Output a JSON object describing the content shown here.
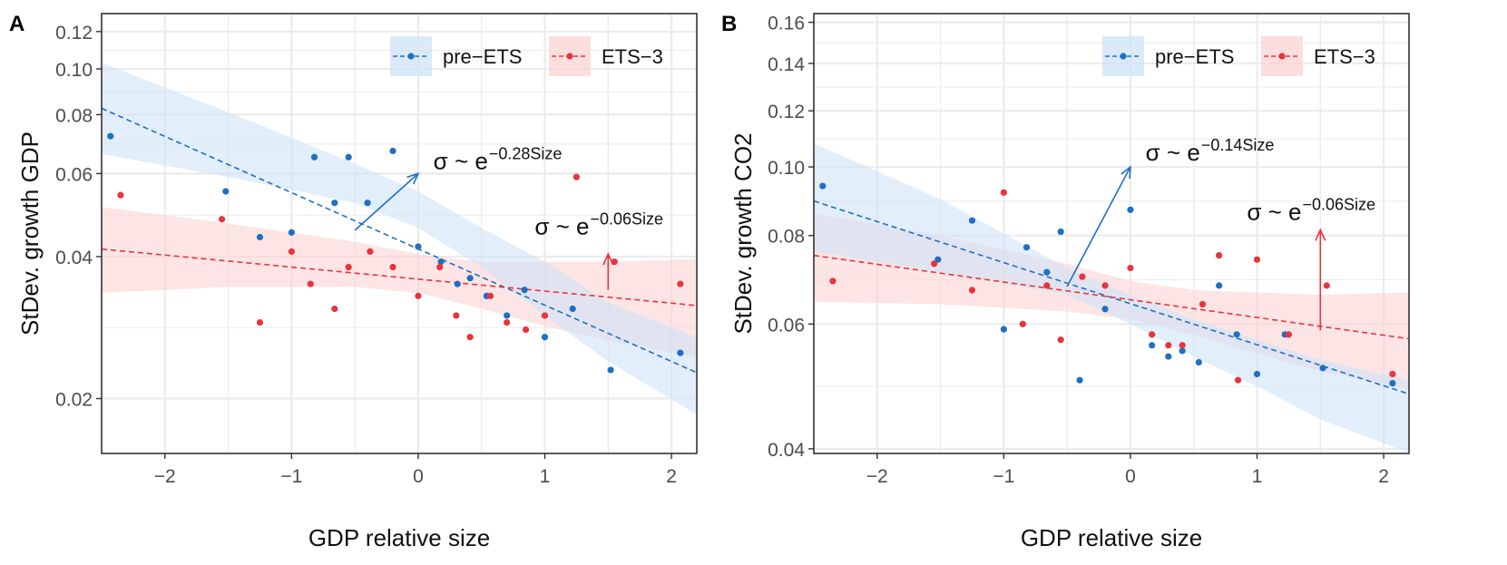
{
  "colors": {
    "blue": "#1f6fc4",
    "red": "#e8343c",
    "blue_band": "#cfe3f6",
    "red_band": "#fbd3d3",
    "grid": "#ebebeb",
    "axis_text": "#4d4d4d"
  },
  "chart_data": [
    {
      "panel": "A",
      "type": "scatter",
      "xlabel": "GDP relative size",
      "ylabel": "StDev. growth GDP",
      "yscale": "log",
      "xlim": [
        -2.5,
        2.2
      ],
      "ylim": [
        0.0153,
        0.131
      ],
      "xticks": [
        -2,
        -1,
        0,
        1,
        2
      ],
      "xtick_labels": [
        "−2",
        "−1",
        "0",
        "1",
        "2"
      ],
      "yticks": [
        0.02,
        0.04,
        0.06,
        0.08,
        0.1,
        0.12
      ],
      "ytick_labels": [
        "0.02",
        "0.04",
        "0.06",
        "0.08",
        "0.10",
        "0.12"
      ],
      "legend": [
        {
          "label": "pre−ETS",
          "series": "blue"
        },
        {
          "label": "ETS−3",
          "series": "red"
        }
      ],
      "series": [
        {
          "name": "pre−ETS",
          "color_key": "blue",
          "points": [
            [
              -2.43,
              0.072
            ],
            [
              -1.52,
              0.055
            ],
            [
              -1.25,
              0.044
            ],
            [
              -1.0,
              0.045
            ],
            [
              -0.82,
              0.065
            ],
            [
              -0.55,
              0.065
            ],
            [
              -0.66,
              0.052
            ],
            [
              -0.4,
              0.052
            ],
            [
              -0.2,
              0.067
            ],
            [
              0.0,
              0.042
            ],
            [
              0.18,
              0.039
            ],
            [
              0.31,
              0.035
            ],
            [
              0.41,
              0.036
            ],
            [
              0.54,
              0.033
            ],
            [
              0.7,
              0.03
            ],
            [
              0.84,
              0.034
            ],
            [
              1.0,
              0.027
            ],
            [
              1.22,
              0.031
            ],
            [
              1.52,
              0.023
            ],
            [
              2.07,
              0.025
            ]
          ],
          "fit": {
            "x": [
              -2.5,
              2.2
            ],
            "y": [
              0.0825,
              0.0227
            ]
          },
          "band_upper": [
            [
              -2.5,
              0.103
            ],
            [
              -1.5,
              0.081
            ],
            [
              -0.5,
              0.063
            ],
            [
              0.0,
              0.055
            ],
            [
              0.5,
              0.046
            ],
            [
              1.0,
              0.039
            ],
            [
              1.5,
              0.032
            ],
            [
              2.2,
              0.027
            ]
          ],
          "band_lower": [
            [
              -2.5,
              0.066
            ],
            [
              -1.5,
              0.059
            ],
            [
              -0.5,
              0.052
            ],
            [
              0.0,
              0.046
            ],
            [
              0.5,
              0.038
            ],
            [
              1.0,
              0.03
            ],
            [
              1.5,
              0.024
            ],
            [
              2.2,
              0.0185
            ]
          ]
        },
        {
          "name": "ETS−3",
          "color_key": "red",
          "points": [
            [
              -2.35,
              0.054
            ],
            [
              -1.55,
              0.048
            ],
            [
              -1.25,
              0.029
            ],
            [
              -1.0,
              0.041
            ],
            [
              -0.85,
              0.035
            ],
            [
              -0.66,
              0.031
            ],
            [
              -0.55,
              0.038
            ],
            [
              -0.38,
              0.041
            ],
            [
              -0.2,
              0.038
            ],
            [
              0.0,
              0.033
            ],
            [
              0.17,
              0.038
            ],
            [
              0.3,
              0.03
            ],
            [
              0.41,
              0.027
            ],
            [
              0.57,
              0.033
            ],
            [
              0.7,
              0.029
            ],
            [
              0.85,
              0.028
            ],
            [
              1.0,
              0.03
            ],
            [
              1.25,
              0.059
            ],
            [
              1.55,
              0.039
            ],
            [
              2.07,
              0.035
            ]
          ],
          "fit": {
            "x": [
              -2.5,
              2.2
            ],
            "y": [
              0.0415,
              0.0315
            ]
          },
          "band_upper": [
            [
              -2.5,
              0.051
            ],
            [
              -1.5,
              0.047
            ],
            [
              -0.5,
              0.043
            ],
            [
              0.0,
              0.0405
            ],
            [
              0.5,
              0.039
            ],
            [
              1.0,
              0.039
            ],
            [
              1.5,
              0.039
            ],
            [
              2.2,
              0.0395
            ]
          ],
          "band_lower": [
            [
              -2.5,
              0.0335
            ],
            [
              -1.5,
              0.0345
            ],
            [
              -0.5,
              0.0345
            ],
            [
              0.0,
              0.0335
            ],
            [
              0.5,
              0.031
            ],
            [
              1.0,
              0.0285
            ],
            [
              1.5,
              0.0265
            ],
            [
              2.2,
              0.0245
            ]
          ]
        }
      ],
      "annotations": [
        {
          "base": "σ ~ e",
          "exponent": "−0.28Size",
          "color_key": "blue",
          "arrow": {
            "from": [
              -0.5,
              0.0455
            ],
            "to": [
              0.0,
              0.06
            ]
          },
          "text_at": [
            0.12,
            0.0635
          ]
        },
        {
          "base": "σ ~ e",
          "exponent": "−0.06Size",
          "color_key": "red",
          "arrow": {
            "from": [
              1.5,
              0.034
            ],
            "to": [
              1.5,
              0.0405
            ]
          },
          "text_at": [
            0.92,
            0.0462
          ]
        }
      ]
    },
    {
      "panel": "B",
      "type": "scatter",
      "xlabel": "GDP relative size",
      "ylabel": "StDev. growth CO2",
      "yscale": "log",
      "xlim": [
        -2.5,
        2.2
      ],
      "ylim": [
        0.0394,
        0.1646
      ],
      "xticks": [
        -2,
        -1,
        0,
        1,
        2
      ],
      "xtick_labels": [
        "−2",
        "−1",
        "0",
        "1",
        "2"
      ],
      "yticks": [
        0.04,
        0.06,
        0.08,
        0.1,
        0.12,
        0.14,
        0.16
      ],
      "ytick_labels": [
        "0.04",
        "0.06",
        "0.08",
        "0.10",
        "0.12",
        "0.14",
        "0.16"
      ],
      "legend": [
        {
          "label": "pre−ETS",
          "series": "blue"
        },
        {
          "label": "ETS−3",
          "series": "red"
        }
      ],
      "series": [
        {
          "name": "pre−ETS",
          "color_key": "blue",
          "points": [
            [
              -2.43,
              0.094
            ],
            [
              -1.52,
              0.074
            ],
            [
              -1.25,
              0.084
            ],
            [
              -1.0,
              0.059
            ],
            [
              -0.82,
              0.077
            ],
            [
              -0.66,
              0.071
            ],
            [
              -0.55,
              0.081
            ],
            [
              -0.4,
              0.05
            ],
            [
              -0.2,
              0.063
            ],
            [
              0.0,
              0.087
            ],
            [
              0.17,
              0.056
            ],
            [
              0.3,
              0.054
            ],
            [
              0.41,
              0.055
            ],
            [
              0.54,
              0.053
            ],
            [
              0.7,
              0.068
            ],
            [
              0.84,
              0.058
            ],
            [
              1.0,
              0.051
            ],
            [
              1.22,
              0.058
            ],
            [
              1.52,
              0.052
            ],
            [
              2.07,
              0.0495
            ]
          ],
          "fit": {
            "x": [
              -2.5,
              2.2
            ],
            "y": [
              0.0895,
              0.0478
            ]
          },
          "band_upper": [
            [
              -2.5,
              0.108
            ],
            [
              -1.5,
              0.09
            ],
            [
              -0.5,
              0.072
            ],
            [
              0.0,
              0.066
            ],
            [
              0.5,
              0.061
            ],
            [
              1.0,
              0.057
            ],
            [
              1.5,
              0.0535
            ],
            [
              2.2,
              0.05
            ]
          ],
          "band_lower": [
            [
              -2.5,
              0.076
            ],
            [
              -1.5,
              0.071
            ],
            [
              -0.5,
              0.066
            ],
            [
              0.0,
              0.06
            ],
            [
              0.5,
              0.054
            ],
            [
              1.0,
              0.049
            ],
            [
              1.5,
              0.044
            ],
            [
              2.2,
              0.0395
            ]
          ]
        },
        {
          "name": "ETS−3",
          "color_key": "red",
          "points": [
            [
              -2.35,
              0.069
            ],
            [
              -1.55,
              0.073
            ],
            [
              -1.25,
              0.067
            ],
            [
              -1.0,
              0.092
            ],
            [
              -0.85,
              0.06
            ],
            [
              -0.66,
              0.068
            ],
            [
              -0.55,
              0.057
            ],
            [
              -0.38,
              0.07
            ],
            [
              -0.2,
              0.068
            ],
            [
              0.0,
              0.072
            ],
            [
              0.17,
              0.058
            ],
            [
              0.3,
              0.056
            ],
            [
              0.41,
              0.056
            ],
            [
              0.57,
              0.064
            ],
            [
              0.7,
              0.075
            ],
            [
              0.85,
              0.05
            ],
            [
              1.0,
              0.074
            ],
            [
              1.25,
              0.058
            ],
            [
              1.55,
              0.068
            ],
            [
              2.07,
              0.051
            ]
          ],
          "fit": {
            "x": [
              -2.5,
              2.2
            ],
            "y": [
              0.075,
              0.0572
            ]
          },
          "band_upper": [
            [
              -2.5,
              0.086
            ],
            [
              -1.5,
              0.08
            ],
            [
              -0.5,
              0.073
            ],
            [
              0.0,
              0.069
            ],
            [
              0.5,
              0.067
            ],
            [
              1.0,
              0.0665
            ],
            [
              1.5,
              0.066
            ],
            [
              2.2,
              0.0665
            ]
          ],
          "band_lower": [
            [
              -2.5,
              0.0645
            ],
            [
              -1.5,
              0.064
            ],
            [
              -0.5,
              0.0625
            ],
            [
              0.0,
              0.061
            ],
            [
              0.5,
              0.058
            ],
            [
              1.0,
              0.0545
            ],
            [
              1.5,
              0.0515
            ],
            [
              2.2,
              0.0485
            ]
          ]
        }
      ],
      "annotations": [
        {
          "base": "σ ~ e",
          "exponent": "−0.14Size",
          "color_key": "blue",
          "arrow": {
            "from": [
              -0.5,
              0.0678
            ],
            "to": [
              0.0,
              0.1
            ]
          },
          "text_at": [
            0.12,
            0.1045
          ]
        },
        {
          "base": "σ ~ e",
          "exponent": "−0.06Size",
          "color_key": "red",
          "arrow": {
            "from": [
              1.5,
              0.0588
            ],
            "to": [
              1.5,
              0.0815
            ]
          },
          "text_at": [
            0.92,
            0.0862
          ]
        }
      ]
    }
  ]
}
